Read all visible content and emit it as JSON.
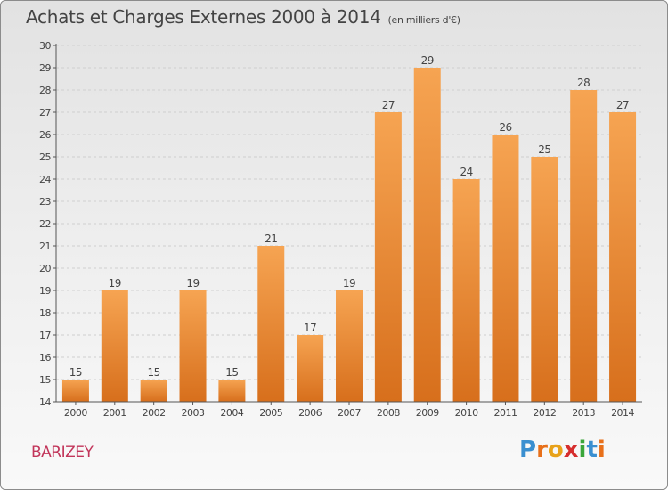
{
  "header": {
    "title": "Achats et Charges Externes 2000 à 2014",
    "unit": "(en milliers d'€)"
  },
  "place": "BARIZEY",
  "logo": {
    "text": "Proxiti",
    "letters": [
      {
        "ch": "P",
        "color": "#3a8fd0"
      },
      {
        "ch": "r",
        "color": "#e8701a"
      },
      {
        "ch": "o",
        "color": "#e8a21a"
      },
      {
        "ch": "x",
        "color": "#d62e2e"
      },
      {
        "ch": "i",
        "color": "#3aa63a"
      },
      {
        "ch": "t",
        "color": "#3a8fd0"
      },
      {
        "ch": "i",
        "color": "#e8701a"
      }
    ]
  },
  "colors": {
    "bar_light": "#f6a452",
    "bar_dark": "#d76f1c",
    "axis": "#555555",
    "grid": "#cfcfcf",
    "text": "#444444"
  },
  "chart_data": {
    "type": "bar",
    "title": "Achats et Charges Externes 2000 à 2014",
    "subtitle": "(en milliers d'€)",
    "xlabel": "",
    "ylabel": "",
    "categories": [
      "2000",
      "2001",
      "2002",
      "2003",
      "2004",
      "2005",
      "2006",
      "2007",
      "2008",
      "2009",
      "2010",
      "2011",
      "2012",
      "2013",
      "2014"
    ],
    "values": [
      15,
      19,
      15,
      19,
      15,
      21,
      17,
      19,
      27,
      29,
      24,
      26,
      25,
      28,
      27
    ],
    "ylim": [
      14,
      30
    ],
    "yticks": [
      14,
      15,
      16,
      17,
      18,
      19,
      20,
      21,
      22,
      23,
      24,
      25,
      26,
      27,
      28,
      29,
      30
    ],
    "grid": true,
    "data_labels": true
  }
}
